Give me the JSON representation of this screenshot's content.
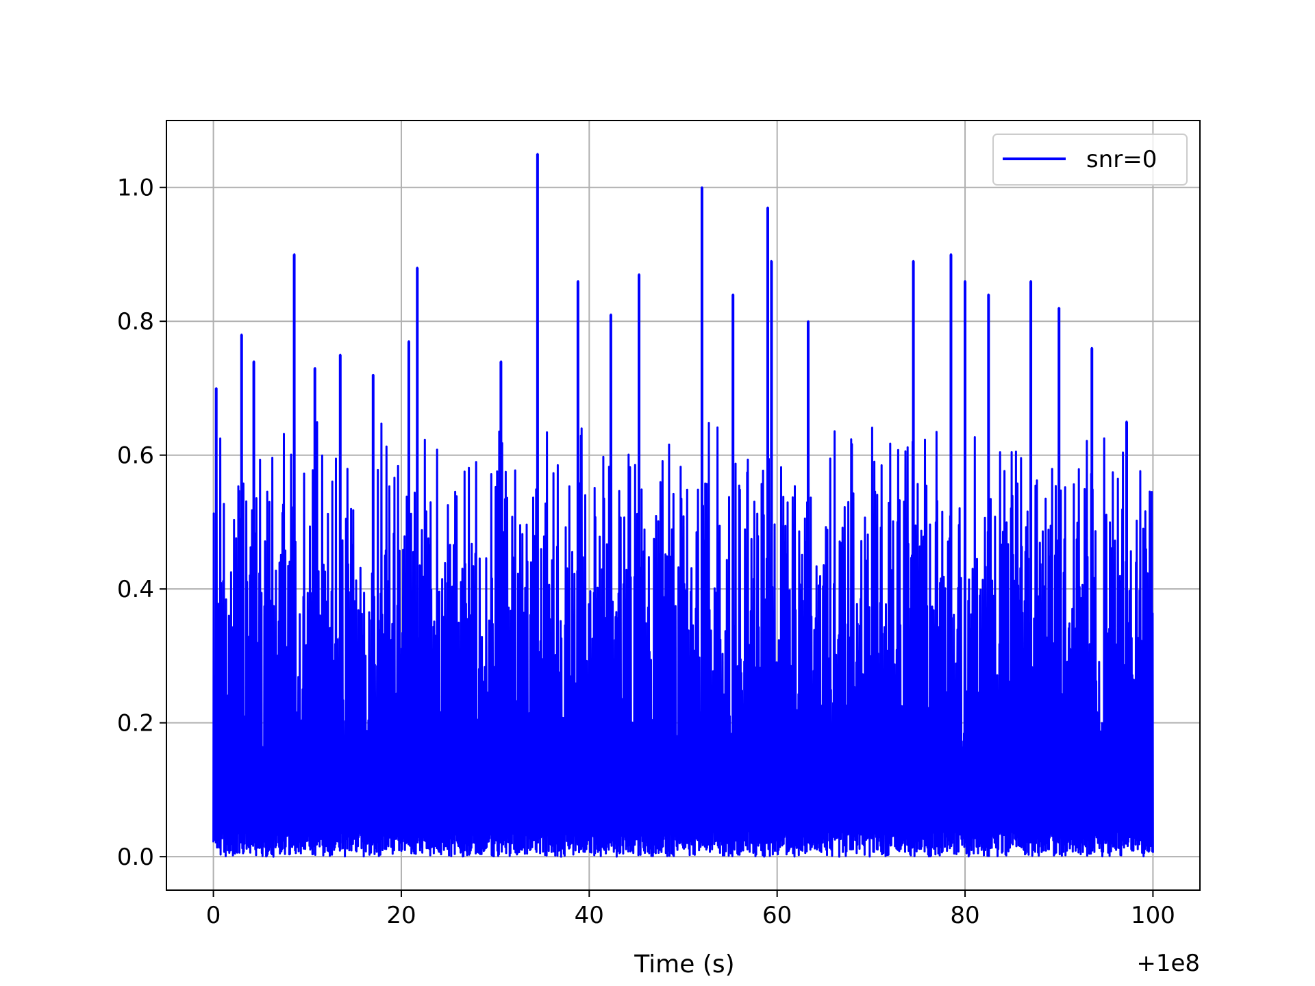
{
  "chart_data": {
    "type": "line",
    "title": "",
    "xlabel": "Time (s)",
    "ylabel": "",
    "x_offset_label": "+1e8",
    "xlim": [
      -5,
      105
    ],
    "ylim": [
      -0.05,
      1.1
    ],
    "x_ticks": [
      0,
      20,
      40,
      60,
      80,
      100
    ],
    "x_tick_labels": [
      "0",
      "20",
      "40",
      "60",
      "80",
      "100"
    ],
    "y_ticks": [
      0.0,
      0.2,
      0.4,
      0.6,
      0.8,
      1.0
    ],
    "y_tick_labels": [
      "0.0",
      "0.2",
      "0.4",
      "0.6",
      "0.8",
      "1.0"
    ],
    "grid": true,
    "legend_position": "top-right",
    "series": [
      {
        "name": "snr=0",
        "color": "#0000ff",
        "x_range": [
          0,
          100
        ],
        "value_floor": 0.0,
        "notable_peaks": [
          {
            "x": 0.3,
            "y": 0.7
          },
          {
            "x": 3.0,
            "y": 0.78
          },
          {
            "x": 4.3,
            "y": 0.74
          },
          {
            "x": 8.6,
            "y": 0.9
          },
          {
            "x": 10.8,
            "y": 0.73
          },
          {
            "x": 13.5,
            "y": 0.75
          },
          {
            "x": 17.0,
            "y": 0.72
          },
          {
            "x": 20.8,
            "y": 0.77
          },
          {
            "x": 21.7,
            "y": 0.88
          },
          {
            "x": 30.6,
            "y": 0.74
          },
          {
            "x": 34.5,
            "y": 1.05
          },
          {
            "x": 38.8,
            "y": 0.86
          },
          {
            "x": 42.3,
            "y": 0.81
          },
          {
            "x": 45.3,
            "y": 0.87
          },
          {
            "x": 52.0,
            "y": 1.0
          },
          {
            "x": 55.3,
            "y": 0.84
          },
          {
            "x": 59.0,
            "y": 0.97
          },
          {
            "x": 59.4,
            "y": 0.89
          },
          {
            "x": 63.3,
            "y": 0.8
          },
          {
            "x": 74.5,
            "y": 0.89
          },
          {
            "x": 78.5,
            "y": 0.9
          },
          {
            "x": 80.0,
            "y": 0.86
          },
          {
            "x": 82.5,
            "y": 0.84
          },
          {
            "x": 87.0,
            "y": 0.86
          },
          {
            "x": 90.0,
            "y": 0.82
          },
          {
            "x": 93.5,
            "y": 0.76
          },
          {
            "x": 97.2,
            "y": 0.65
          }
        ]
      }
    ]
  }
}
